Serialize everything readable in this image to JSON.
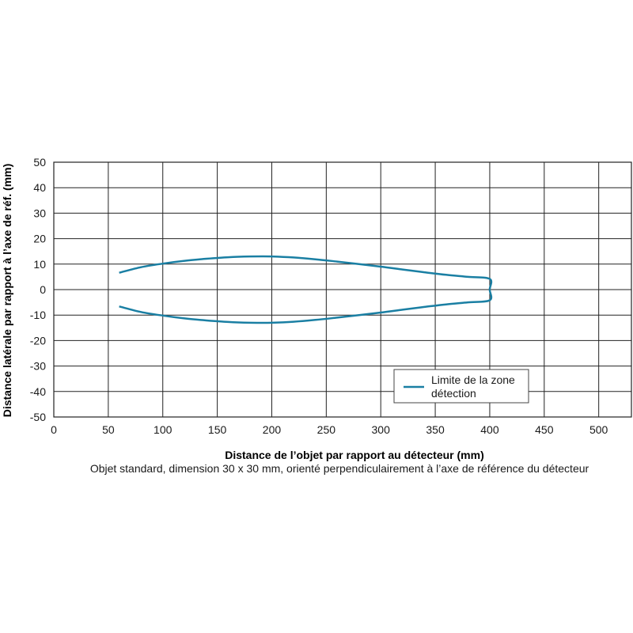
{
  "chart_data": {
    "type": "line",
    "title": "",
    "xlabel": "Distance de l’objet par rapport au détecteur (mm)",
    "ylabel": "Distance latérale par rapport à l’axe de réf. (mm)",
    "xlim": [
      0,
      530
    ],
    "ylim": [
      -50,
      50
    ],
    "x_ticks": [
      0,
      50,
      100,
      150,
      200,
      250,
      300,
      350,
      400,
      450,
      500
    ],
    "y_ticks": [
      50,
      40,
      30,
      20,
      10,
      0,
      -10,
      -20,
      -30,
      -40,
      -50
    ],
    "grid": true,
    "legend_position": "bottom-right",
    "line_color": "#1a7fa3",
    "series": [
      {
        "name": "Limite de la zone détection",
        "x": [
          60,
          80,
          100,
          120,
          140,
          160,
          180,
          200,
          220,
          240,
          260,
          280,
          300,
          320,
          340,
          360,
          380,
          400,
          400,
          400,
          380,
          360,
          340,
          320,
          300,
          280,
          260,
          240,
          220,
          200,
          180,
          160,
          140,
          120,
          100,
          80,
          60
        ],
        "y": [
          6.6,
          8.8,
          10.2,
          11.3,
          12.1,
          12.7,
          13.0,
          13.0,
          12.6,
          11.9,
          11.0,
          10.0,
          9.0,
          7.9,
          6.8,
          5.8,
          5.0,
          4.2,
          0,
          -4.2,
          -5.0,
          -5.8,
          -6.8,
          -7.9,
          -9.0,
          -10.0,
          -11.0,
          -11.9,
          -12.6,
          -13.0,
          -13.0,
          -12.7,
          -12.1,
          -11.3,
          -10.2,
          -8.8,
          -6.6
        ]
      }
    ],
    "legend": [
      "Limite de la zone",
      "détection"
    ],
    "note": "Objet standard, dimension 30 x 30 mm, orienté perpendiculairement à l’axe de référence du détecteur"
  }
}
